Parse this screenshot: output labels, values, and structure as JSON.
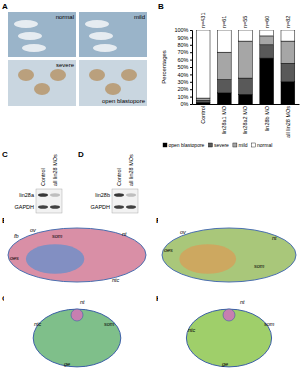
{
  "chart_data": {
    "type": "bar",
    "stacked": true,
    "grid": false,
    "legend": "bottom",
    "ylabel": "Percentages",
    "categories": [
      "Control",
      "lin28a1 MO",
      "lin28a2 MO",
      "lin28b MO",
      "all lin28 MOs"
    ],
    "annotations": [
      "n=431",
      "n=61",
      "n=55",
      "n=60",
      "n=82"
    ],
    "series": [
      {
        "name": "open blastopore",
        "color": "#000000",
        "values": [
          2,
          15,
          13,
          62,
          30
        ]
      },
      {
        "name": "severe",
        "color": "#595959",
        "values": [
          3,
          18,
          22,
          18,
          25
        ]
      },
      {
        "name": "mild",
        "color": "#a6a6a6",
        "values": [
          3,
          37,
          50,
          12,
          30
        ]
      },
      {
        "name": "normal",
        "color": "#ffffff",
        "values": [
          92,
          30,
          15,
          8,
          15
        ]
      }
    ],
    "ylim": [
      0,
      100
    ],
    "yticks": [
      {
        "value": 0,
        "label": "0%"
      },
      {
        "value": 10,
        "label": "10%"
      },
      {
        "value": 20,
        "label": "20%"
      },
      {
        "value": 30,
        "label": "30%"
      },
      {
        "value": 40,
        "label": "40%"
      },
      {
        "value": 50,
        "label": "50%"
      },
      {
        "value": 60,
        "label": "60%"
      },
      {
        "value": 70,
        "label": "70%"
      },
      {
        "value": 80,
        "label": "80%"
      },
      {
        "value": 90,
        "label": "90%"
      },
      {
        "value": 100,
        "label": "100%"
      }
    ]
  },
  "panels": {
    "letters": [
      "A",
      "B",
      "C",
      "D",
      "E",
      "F",
      "G",
      "H"
    ],
    "A": {
      "labels": [
        "normal",
        "mild",
        "severe",
        "open blastopore"
      ]
    },
    "C": {
      "lanes": [
        "Control",
        "all lin28 MOs"
      ],
      "rows": [
        "lin28a",
        "GAPDH"
      ]
    },
    "D": {
      "lanes": [
        "Control",
        "all lin28 MOs"
      ],
      "rows": [
        "lin28b",
        "GAPDH"
      ]
    },
    "E": {
      "labels": [
        "fb",
        "ov",
        "som",
        "oes",
        "nt",
        "ntc"
      ]
    },
    "F": {
      "labels": [
        "ov",
        "nt",
        "oes",
        "som"
      ]
    },
    "G": {
      "labels": [
        "nt",
        "ntc",
        "som",
        "ge"
      ]
    },
    "H": {
      "labels": [
        "nt",
        "som",
        "ntc",
        "ge"
      ]
    }
  }
}
